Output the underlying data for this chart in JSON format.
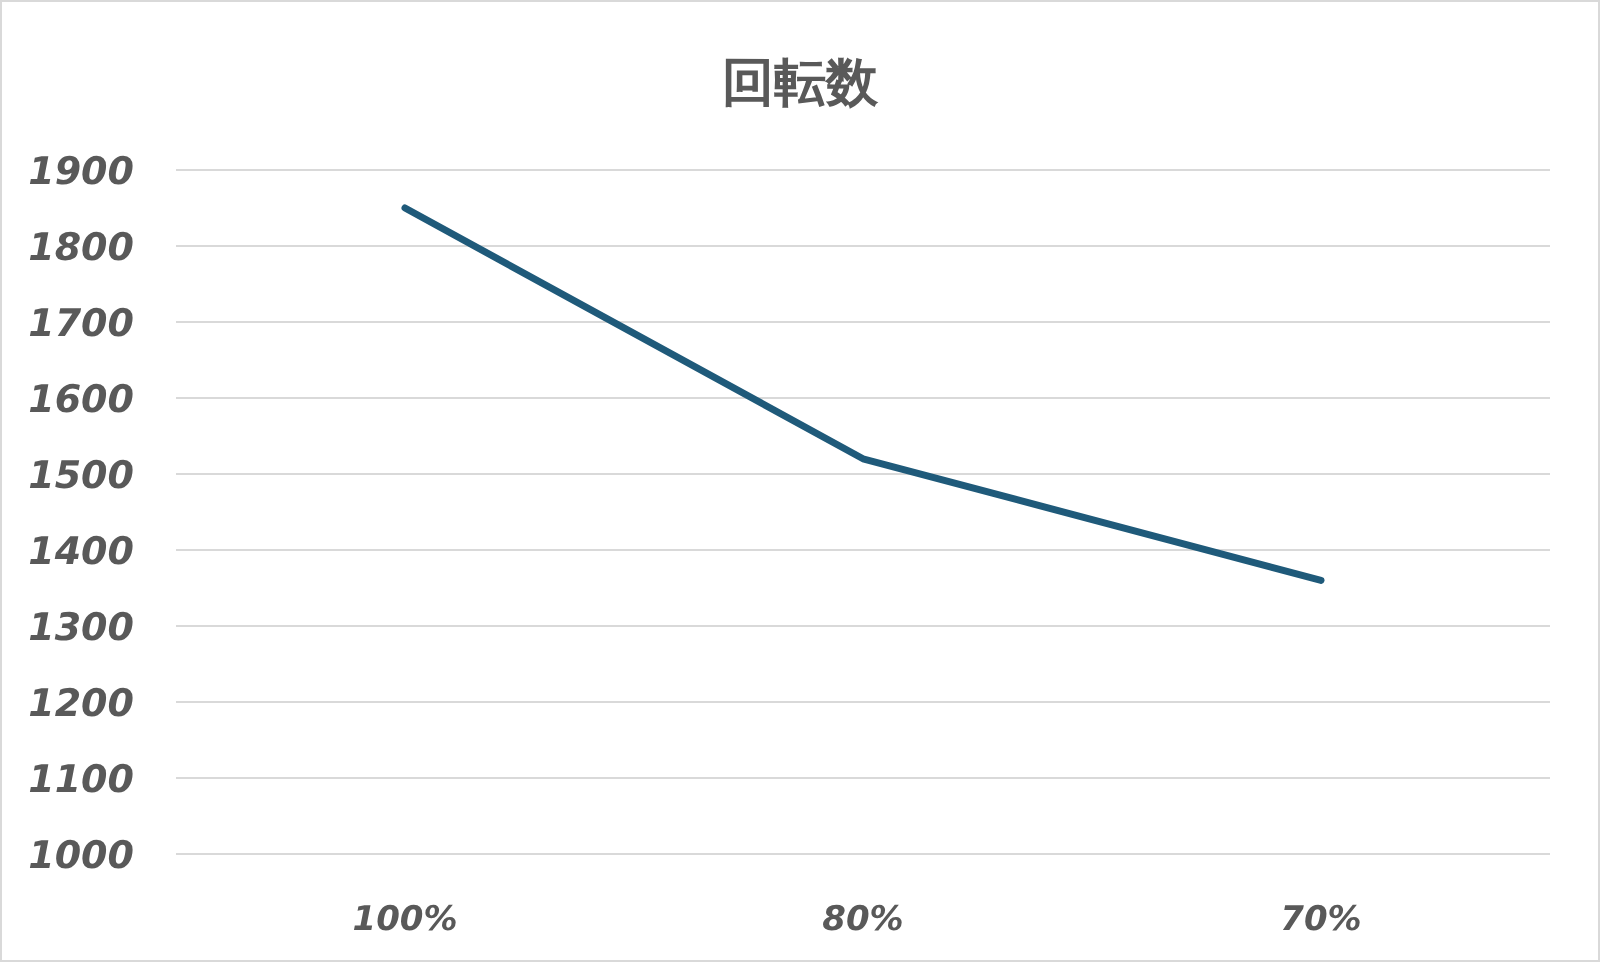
{
  "chart_data": {
    "type": "line",
    "title": "回転数",
    "categories": [
      "100%",
      "80%",
      "70%"
    ],
    "values": [
      1850,
      1520,
      1360
    ],
    "color": "#1f5a7a",
    "ylim": [
      1000,
      1900
    ],
    "yticks": [
      1000,
      1100,
      1200,
      1300,
      1400,
      1500,
      1600,
      1700,
      1800,
      1900
    ],
    "grid": "y"
  }
}
